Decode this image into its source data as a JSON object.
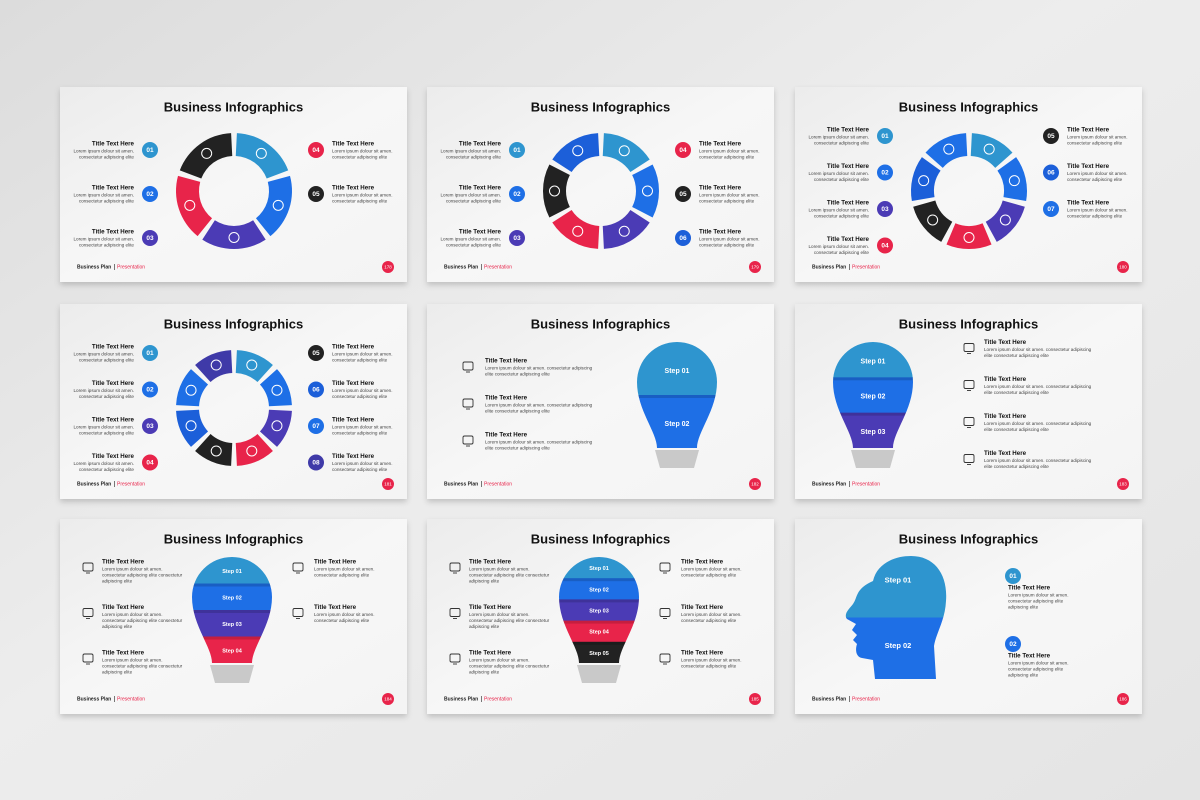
{
  "slides": [
    {
      "layout": "ring",
      "title": "Business Infographics",
      "brand": "Business Plan",
      "section": "Presentation",
      "page": 178,
      "left_items": [
        {
          "number": "01",
          "color": "#2e95cf",
          "title": "Title Text Here",
          "body": [
            "Lorem ipsum dolour sit amen.",
            "consectetur adipiscing elite"
          ]
        },
        {
          "number": "02",
          "color": "#1e6fe6",
          "title": "Title Text Here",
          "body": [
            "Lorem ipsum dolour sit amen.",
            "consectetur adipiscing elite"
          ]
        },
        {
          "number": "03",
          "color": "#4b3bb5",
          "title": "Title Text Here",
          "body": [
            "Lorem ipsum dolour sit amen.",
            "consectetur adipiscing elite"
          ]
        }
      ],
      "right_items": [
        {
          "number": "04",
          "color": "#e8244a",
          "title": "Title Text Here",
          "body": [
            "Lorem ipsum dolour sit amen.",
            "consectetur adipiscing elite"
          ]
        },
        {
          "number": "05",
          "color": "#222222",
          "title": "Title Text Here",
          "body": [
            "Lorem ipsum dolour sit amen.",
            "consectetur adipiscing elite"
          ]
        }
      ]
    },
    {
      "layout": "ring",
      "title": "Business Infographics",
      "brand": "Business Plan",
      "section": "Presentation",
      "page": 179,
      "left_items": [
        {
          "number": "01",
          "color": "#2e95cf",
          "title": "Title Text Here",
          "body": [
            "Lorem ipsum dolour sit amen.",
            "consectetur adipiscing elite"
          ]
        },
        {
          "number": "02",
          "color": "#1e6fe6",
          "title": "Title Text Here",
          "body": [
            "Lorem ipsum dolour sit amen.",
            "consectetur adipiscing elite"
          ]
        },
        {
          "number": "03",
          "color": "#4b3bb5",
          "title": "Title Text Here",
          "body": [
            "Lorem ipsum dolour sit amen.",
            "consectetur adipiscing elite"
          ]
        }
      ],
      "right_items": [
        {
          "number": "04",
          "color": "#e8244a",
          "title": "Title Text Here",
          "body": [
            "Lorem ipsum dolour sit amen.",
            "consectetur adipiscing elite"
          ]
        },
        {
          "number": "05",
          "color": "#222222",
          "title": "Title Text Here",
          "body": [
            "Lorem ipsum dolour sit amen.",
            "consectetur adipiscing elite"
          ]
        },
        {
          "number": "06",
          "color": "#1c5fd9",
          "title": "Title Text Here",
          "body": [
            "Lorem ipsum dolour sit amen.",
            "consectetur adipiscing elite"
          ]
        }
      ]
    },
    {
      "layout": "ring",
      "title": "Business Infographics",
      "brand": "Business Plan",
      "section": "Presentation",
      "page": 180,
      "left_items": [
        {
          "number": "01",
          "color": "#2e95cf",
          "title": "Title Text Here",
          "body": [
            "Lorem ipsum dolour sit amen.",
            "consectetur adipiscing elite"
          ]
        },
        {
          "number": "02",
          "color": "#1e6fe6",
          "title": "Title Text Here",
          "body": [
            "Lorem ipsum dolour sit amen.",
            "consectetur adipiscing elite"
          ]
        },
        {
          "number": "03",
          "color": "#4b3bb5",
          "title": "Title Text Here",
          "body": [
            "Lorem ipsum dolour sit amen.",
            "consectetur adipiscing elite"
          ]
        },
        {
          "number": "04",
          "color": "#e8244a",
          "title": "Title Text Here",
          "body": [
            "Lorem ipsum dolour sit amen.",
            "consectetur adipiscing elite"
          ]
        }
      ],
      "right_items": [
        {
          "number": "05",
          "color": "#222222",
          "title": "Title Text Here",
          "body": [
            "Lorem ipsum dolour sit amen.",
            "consectetur adipiscing elite"
          ]
        },
        {
          "number": "06",
          "color": "#1c5fd9",
          "title": "Title Text Here",
          "body": [
            "Lorem ipsum dolour sit amen.",
            "consectetur adipiscing elite"
          ]
        },
        {
          "number": "07",
          "color": "#1e6fe6",
          "title": "Title Text Here",
          "body": [
            "Lorem ipsum dolour sit amen.",
            "consectetur adipiscing elite"
          ]
        }
      ]
    },
    {
      "layout": "ring",
      "title": "Business Infographics",
      "brand": "Business Plan",
      "section": "Presentation",
      "page": 181,
      "left_items": [
        {
          "number": "01",
          "color": "#2e95cf",
          "title": "Title Text Here",
          "body": [
            "Lorem ipsum dolour sit amen.",
            "consectetur adipiscing elite"
          ]
        },
        {
          "number": "02",
          "color": "#1e6fe6",
          "title": "Title Text Here",
          "body": [
            "Lorem ipsum dolour sit amen.",
            "consectetur adipiscing elite"
          ]
        },
        {
          "number": "03",
          "color": "#4b3bb5",
          "title": "Title Text Here",
          "body": [
            "Lorem ipsum dolour sit amen.",
            "consectetur adipiscing elite"
          ]
        },
        {
          "number": "04",
          "color": "#e8244a",
          "title": "Title Text Here",
          "body": [
            "Lorem ipsum dolour sit amen.",
            "consectetur adipiscing elite"
          ]
        }
      ],
      "right_items": [
        {
          "number": "05",
          "color": "#222222",
          "title": "Title Text Here",
          "body": [
            "Lorem ipsum dolour sit amen.",
            "consectetur adipiscing elite"
          ]
        },
        {
          "number": "06",
          "color": "#1c5fd9",
          "title": "Title Text Here",
          "body": [
            "Lorem ipsum dolour sit amen.",
            "consectetur adipiscing elite"
          ]
        },
        {
          "number": "07",
          "color": "#1e6fe6",
          "title": "Title Text Here",
          "body": [
            "Lorem ipsum dolour sit amen.",
            "consectetur adipiscing elite"
          ]
        },
        {
          "number": "08",
          "color": "#3f3aa8",
          "title": "Title Text Here",
          "body": [
            "Lorem ipsum dolour sit amen.",
            "consectetur adipiscing elite"
          ]
        }
      ]
    },
    {
      "layout": "bulb",
      "title": "Business Infographics",
      "brand": "Business Plan",
      "section": "Presentation",
      "page": 182,
      "steps": [
        {
          "label": "Step 01",
          "color": "#2e95cf"
        },
        {
          "label": "Step 02",
          "color": "#1e6fe6"
        }
      ],
      "left_items": [
        {
          "title": "Title Text Here",
          "body": [
            "Lorem ipsum dolour sit amen. consectetur adipiscing",
            "elite consectetur adipiscing elite"
          ]
        },
        {
          "title": "Title Text Here",
          "body": [
            "Lorem ipsum dolour sit amen. consectetur adipiscing",
            "elite consectetur adipiscing elite"
          ]
        },
        {
          "title": "Title Text Here",
          "body": [
            "Lorem ipsum dolour sit amen. consectetur adipiscing",
            "elite consectetur adipiscing elite"
          ]
        }
      ],
      "right_items": []
    },
    {
      "layout": "bulb",
      "title": "Business Infographics",
      "brand": "Business Plan",
      "section": "Presentation",
      "page": 183,
      "steps": [
        {
          "label": "Step 01",
          "color": "#2e95cf"
        },
        {
          "label": "Step 02",
          "color": "#1e6fe6"
        },
        {
          "label": "Step 03",
          "color": "#4b3bb5"
        }
      ],
      "left_items": [],
      "right_items": [
        {
          "title": "Title Text Here",
          "body": [
            "Lorem ipsum dolour sit amen. consectetur adipiscing",
            "elite consectetur adipiscing elite"
          ]
        },
        {
          "title": "Title Text Here",
          "body": [
            "Lorem ipsum dolour sit amen. consectetur adipiscing",
            "elite consectetur adipiscing elite"
          ]
        },
        {
          "title": "Title Text Here",
          "body": [
            "Lorem ipsum dolour sit amen. consectetur adipiscing",
            "elite consectetur adipiscing elite"
          ]
        },
        {
          "title": "Title Text Here",
          "body": [
            "Lorem ipsum dolour sit amen. consectetur adipiscing",
            "elite consectetur adipiscing elite"
          ]
        }
      ]
    },
    {
      "layout": "bulb",
      "title": "Business Infographics",
      "brand": "Business Plan",
      "section": "Presentation",
      "page": 184,
      "steps": [
        {
          "label": "Step 01",
          "color": "#2e95cf"
        },
        {
          "label": "Step 02",
          "color": "#1e6fe6"
        },
        {
          "label": "Step 03",
          "color": "#4b3bb5"
        },
        {
          "label": "Step 04",
          "color": "#e8244a"
        }
      ],
      "left_items": [
        {
          "title": "Title Text Here",
          "body": [
            "Lorem ipsum dolour sit amen.",
            "consectetur adipiscing elite consectetur",
            "adipiscing elite"
          ]
        },
        {
          "title": "Title Text Here",
          "body": [
            "Lorem ipsum dolour sit amen.",
            "consectetur adipiscing elite consectetur",
            "adipiscing elite"
          ]
        },
        {
          "title": "Title Text Here",
          "body": [
            "Lorem ipsum dolour sit amen.",
            "consectetur adipiscing elite consectetur",
            "adipiscing elite"
          ]
        }
      ],
      "right_items": [
        {
          "title": "Title Text Here",
          "body": [
            "Lorem ipsum dolour sit amen.",
            "consectetur adipiscing elite"
          ]
        },
        {
          "title": "Title Text Here",
          "body": [
            "Lorem ipsum dolour sit amen.",
            "consectetur adipiscing elite"
          ]
        }
      ]
    },
    {
      "layout": "bulb",
      "title": "Business Infographics",
      "brand": "Business Plan",
      "section": "Presentation",
      "page": 185,
      "steps": [
        {
          "label": "Step 01",
          "color": "#2e95cf"
        },
        {
          "label": "Step 02",
          "color": "#1e6fe6"
        },
        {
          "label": "Step 03",
          "color": "#4b3bb5"
        },
        {
          "label": "Step 04",
          "color": "#e8244a"
        },
        {
          "label": "Step 05",
          "color": "#222222"
        }
      ],
      "left_items": [
        {
          "title": "Title Text Here",
          "body": [
            "Lorem ipsum dolour sit amen.",
            "consectetur adipiscing elite consectetur",
            "adipiscing elite"
          ]
        },
        {
          "title": "Title Text Here",
          "body": [
            "Lorem ipsum dolour sit amen.",
            "consectetur adipiscing elite consectetur",
            "adipiscing elite"
          ]
        },
        {
          "title": "Title Text Here",
          "body": [
            "Lorem ipsum dolour sit amen.",
            "consectetur adipiscing elite consectetur",
            "adipiscing elite"
          ]
        }
      ],
      "right_items": [
        {
          "title": "Title Text Here",
          "body": [
            "Lorem ipsum dolour sit amen.",
            "consectetur adipiscing elite"
          ]
        },
        {
          "title": "Title Text Here",
          "body": [
            "Lorem ipsum dolour sit amen.",
            "consectetur adipiscing elite"
          ]
        },
        {
          "title": "Title Text Here",
          "body": [
            "Lorem ipsum dolour sit amen.",
            "consectetur adipiscing elite"
          ]
        }
      ]
    },
    {
      "layout": "head",
      "title": "Business Infographics",
      "brand": "Business Plan",
      "section": "Presentation",
      "page": 186,
      "steps": [
        {
          "label": "Step 01",
          "color": "#2e95cf"
        },
        {
          "label": "Step 02",
          "color": "#1e6fe6"
        }
      ],
      "left_items": [],
      "right_items": [
        {
          "number": "01",
          "color": "#2e95cf",
          "title": "Title Text Here",
          "body": [
            "Lorem ipsum dolour sit amen.",
            "consectetur adipiscing elite",
            "adipiscing elite"
          ]
        },
        {
          "number": "02",
          "color": "#1e6fe6",
          "title": "Title Text Here",
          "body": [
            "Lorem ipsum dolour sit amen.",
            "consectetur adipiscing elite",
            "adipiscing elite"
          ]
        }
      ]
    }
  ]
}
